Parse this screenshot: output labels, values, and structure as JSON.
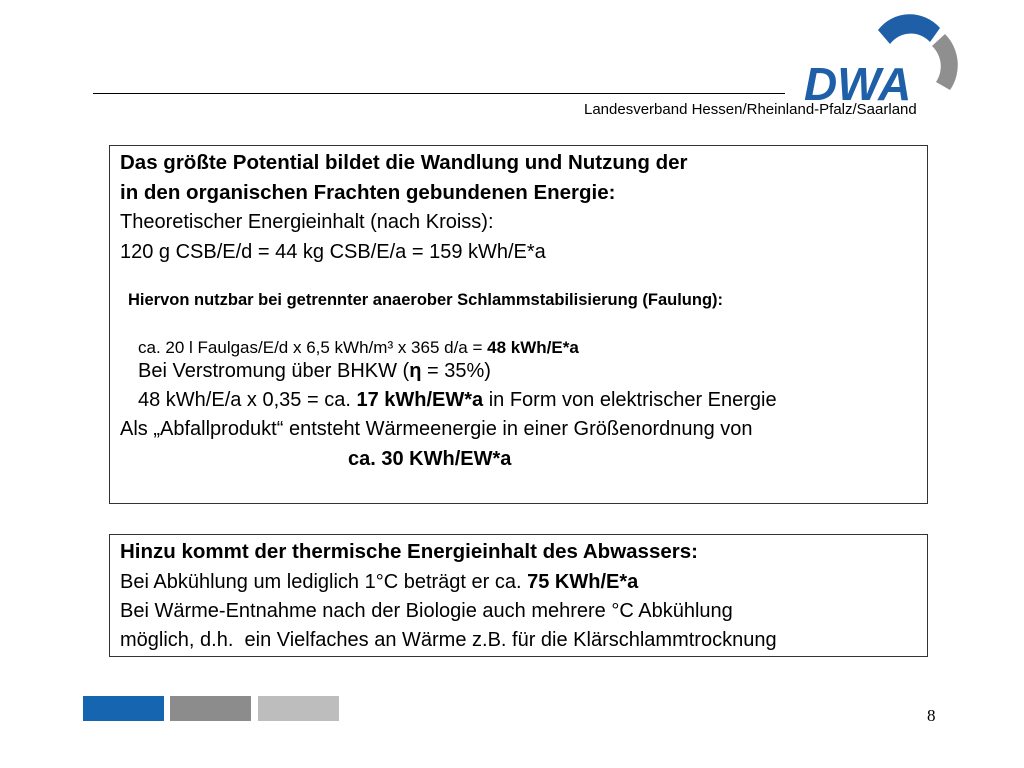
{
  "header": {
    "logo": "DWA",
    "subtitle": "Landesverband Hessen/Rheinland-Pfalz/Saarland"
  },
  "box1": {
    "lines": [
      [
        "Das größte Potential bildet die Wandlung und Nutzung der"
      ],
      [
        "in den organischen Frachten gebundenen Energie:"
      ],
      [
        "Theoretischer Energieinhalt (nach Kroiss):"
      ],
      [
        "120 g CSB/E/d = 44 kg CSB/E/a = 159 kWh/E*a"
      ],
      [
        "Hiervon nutzbar bei getrennter anaerober Schlammstabilisierung (Faulung):"
      ],
      [
        "ca. 20 l Faulgas/E/d x 6,5 kWh/m³ x 365 d/a = ",
        "48 kWh/E*a"
      ],
      [
        "Bei Verstromung über BHKW (",
        "η",
        " = 35%)"
      ],
      [
        "48 kWh/E/a x 0,35 = ca. ",
        "17 kWh/EW*a",
        " in Form von elektrischer Energie"
      ],
      [
        "Als „Abfallprodukt“ entsteht Wärmeenergie in einer Größenordnung von"
      ],
      [
        "ca. 30 KWh/EW*a"
      ]
    ]
  },
  "box2": {
    "lines": [
      [
        "Hinzu kommt der thermische Energieinhalt des Abwassers:"
      ],
      [
        "Bei Abkühlung um lediglich 1°C beträgt er ca. ",
        "75 KWh/E*a"
      ],
      [
        "Bei Wärme-Entnahme nach der Biologie auch mehrere °C Abkühlung"
      ],
      [
        "möglich, d.h.  ein Vielfaches an Wärme z.B. für die Klärschlammtrocknung"
      ]
    ]
  },
  "footer": {
    "page": "8"
  }
}
